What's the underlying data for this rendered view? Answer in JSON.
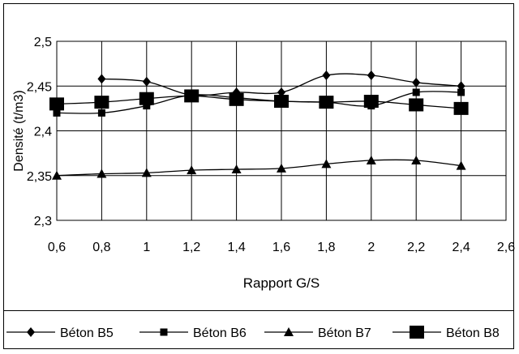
{
  "chart_data": {
    "type": "line",
    "xlabel": "Rapport G/S",
    "ylabel": "Densité (t/m3)",
    "xlim": [
      0.6,
      2.6
    ],
    "ylim": [
      2.3,
      2.5
    ],
    "x_ticks": [
      "0,6",
      "0,8",
      "1",
      "1,2",
      "1,4",
      "1,6",
      "1,8",
      "2",
      "2,2",
      "2,4",
      "2,6"
    ],
    "y_ticks": [
      "2,3",
      "2,35",
      "2,4",
      "2,45",
      "2,5"
    ],
    "grid": "horizontal and vertical",
    "legend_position": "bottom",
    "x": [
      0.6,
      0.8,
      1.0,
      1.2,
      1.4,
      1.6,
      1.8,
      2.0,
      2.2,
      2.4
    ],
    "series": [
      {
        "name": "Béton B5",
        "marker": "diamond",
        "values": [
          null,
          2.458,
          2.455,
          2.44,
          2.443,
          2.443,
          2.462,
          2.462,
          2.454,
          2.45
        ]
      },
      {
        "name": "Béton B6",
        "marker": "small-square",
        "values": [
          2.42,
          2.42,
          2.428,
          2.44,
          2.437,
          2.433,
          2.432,
          2.428,
          2.443,
          2.443
        ]
      },
      {
        "name": "Béton B7",
        "marker": "triangle",
        "values": [
          2.35,
          2.352,
          2.353,
          2.356,
          2.357,
          2.358,
          2.363,
          2.367,
          2.367,
          2.361
        ]
      },
      {
        "name": "Béton B8",
        "marker": "large-square",
        "values": [
          2.43,
          2.432,
          2.436,
          2.439,
          2.435,
          2.433,
          2.432,
          2.433,
          2.429,
          2.425
        ]
      }
    ]
  }
}
